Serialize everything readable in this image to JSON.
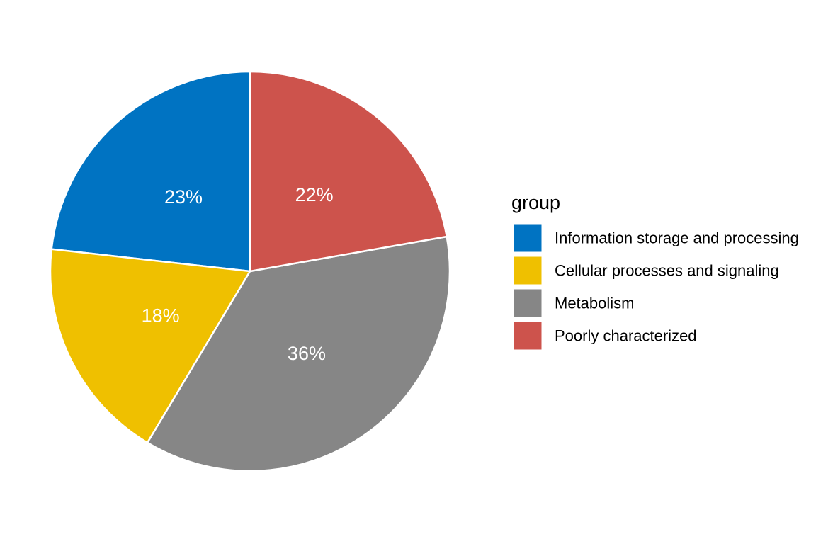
{
  "chart_data": {
    "type": "pie",
    "legend_title": "group",
    "legend_position": "right",
    "start_angle_deg": 0,
    "direction": "counterclockwise",
    "slices": [
      {
        "name": "Information storage and processing",
        "value": 23,
        "label": "23%",
        "color": "#0073C2"
      },
      {
        "name": "Cellular processes and signaling",
        "value": 18,
        "label": "18%",
        "color": "#EFC000"
      },
      {
        "name": "Metabolism",
        "value": 36,
        "label": "36%",
        "color": "#868686"
      },
      {
        "name": "Poorly characterized",
        "value": 22,
        "label": "22%",
        "color": "#CD534C"
      }
    ]
  }
}
